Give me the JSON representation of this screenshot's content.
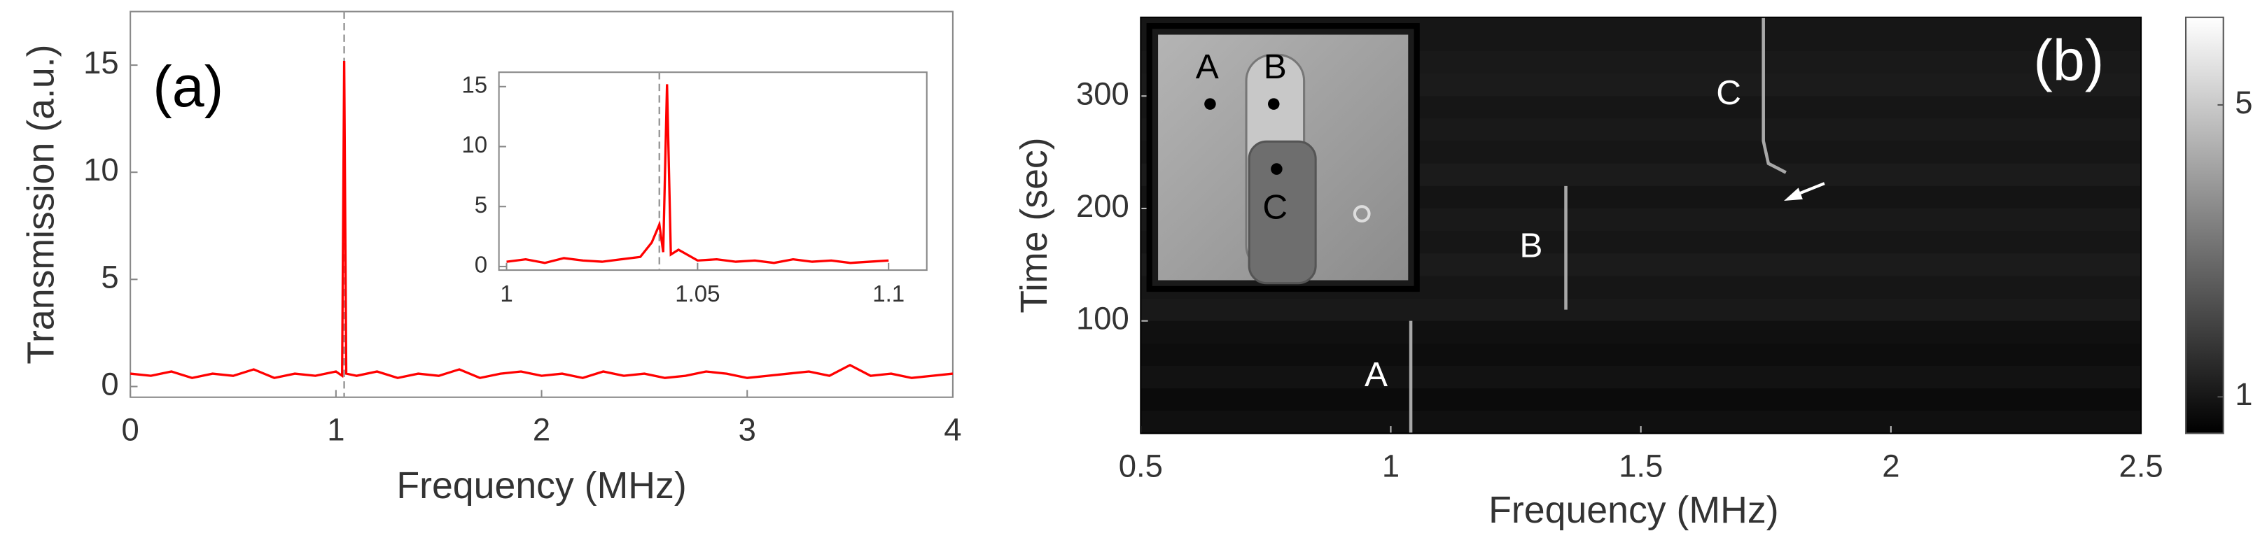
{
  "chart_data": [
    {
      "type": "line",
      "panel_label": "(a)",
      "x_label": "Frequency (MHz)",
      "y_label": "Transmission (a.u.)",
      "xlim": [
        0,
        4
      ],
      "xticks": [
        0,
        1,
        2,
        3,
        4
      ],
      "ylim": [
        -0.5,
        17.5
      ],
      "yticks": [
        0,
        5,
        10,
        15
      ],
      "color": "#ff0000",
      "vline": 1.04,
      "vline_color": "#999999",
      "x": [
        0,
        0.1,
        0.2,
        0.3,
        0.4,
        0.5,
        0.6,
        0.7,
        0.8,
        0.9,
        1.0,
        1.03,
        1.04,
        1.05,
        1.1,
        1.2,
        1.3,
        1.4,
        1.5,
        1.6,
        1.7,
        1.8,
        1.9,
        2.0,
        2.1,
        2.2,
        2.3,
        2.4,
        2.5,
        2.6,
        2.7,
        2.8,
        2.9,
        3.0,
        3.1,
        3.2,
        3.3,
        3.4,
        3.5,
        3.6,
        3.7,
        3.8,
        3.9,
        4.0
      ],
      "values": [
        0.6,
        0.5,
        0.7,
        0.4,
        0.6,
        0.5,
        0.8,
        0.4,
        0.6,
        0.5,
        0.7,
        0.5,
        15.2,
        0.6,
        0.5,
        0.7,
        0.4,
        0.6,
        0.5,
        0.8,
        0.4,
        0.6,
        0.7,
        0.5,
        0.6,
        0.4,
        0.7,
        0.5,
        0.6,
        0.4,
        0.5,
        0.7,
        0.6,
        0.4,
        0.5,
        0.6,
        0.7,
        0.5,
        1.0,
        0.5,
        0.6,
        0.4,
        0.5,
        0.6
      ]
    },
    {
      "type": "line",
      "xlim": [
        0.998,
        1.11
      ],
      "xticks": [
        1,
        1.05,
        1.1
      ],
      "ylim": [
        -0.3,
        16.2
      ],
      "yticks": [
        0,
        5,
        10,
        15
      ],
      "color": "#ff0000",
      "vline": 1.04,
      "vline_color": "#999999",
      "x": [
        1.0,
        1.005,
        1.01,
        1.015,
        1.02,
        1.025,
        1.03,
        1.035,
        1.038,
        1.04,
        1.041,
        1.042,
        1.043,
        1.045,
        1.05,
        1.055,
        1.06,
        1.065,
        1.07,
        1.075,
        1.08,
        1.085,
        1.09,
        1.095,
        1.1
      ],
      "values": [
        0.4,
        0.6,
        0.3,
        0.7,
        0.5,
        0.4,
        0.6,
        0.8,
        2.0,
        3.5,
        1.2,
        15.2,
        1.0,
        1.4,
        0.5,
        0.6,
        0.4,
        0.5,
        0.3,
        0.6,
        0.4,
        0.5,
        0.3,
        0.4,
        0.5
      ]
    },
    {
      "type": "heatmap",
      "panel_label": "(b)",
      "x_label": "Frequency (MHz)",
      "y_label": "Time (sec)",
      "xlim": [
        0.5,
        2.5
      ],
      "xticks": [
        0.5,
        1,
        1.5,
        2,
        2.5
      ],
      "ylim": [
        0,
        370
      ],
      "yticks": [
        100,
        200,
        300
      ],
      "time_bins": [
        0,
        20,
        40,
        60,
        80,
        100,
        120,
        140,
        160,
        180,
        200,
        220,
        240,
        260,
        280,
        300,
        320,
        340,
        370
      ],
      "levels": [
        0.85,
        0.75,
        0.9,
        0.8,
        0.85,
        1.05,
        1.0,
        1.1,
        1.0,
        1.05,
        0.95,
        1.1,
        1.0,
        1.05,
        1.0,
        1.1,
        1.05,
        1.0
      ],
      "trace_color": "#a8a8a8",
      "traces": [
        {
          "name": "A",
          "x": [
            1.04,
            1.04
          ],
          "y": [
            0,
            100
          ]
        },
        {
          "name": "B",
          "x": [
            1.35,
            1.35
          ],
          "y": [
            110,
            220
          ]
        },
        {
          "name": "C",
          "x": [
            1.79,
            1.755,
            1.745,
            1.745
          ],
          "y": [
            232,
            240,
            260,
            370
          ]
        }
      ],
      "colorbar": {
        "clim": [
          0.5,
          6.2
        ],
        "ticks": [
          1,
          5
        ]
      },
      "inset_labels": [
        "A",
        "B",
        "C"
      ]
    }
  ]
}
